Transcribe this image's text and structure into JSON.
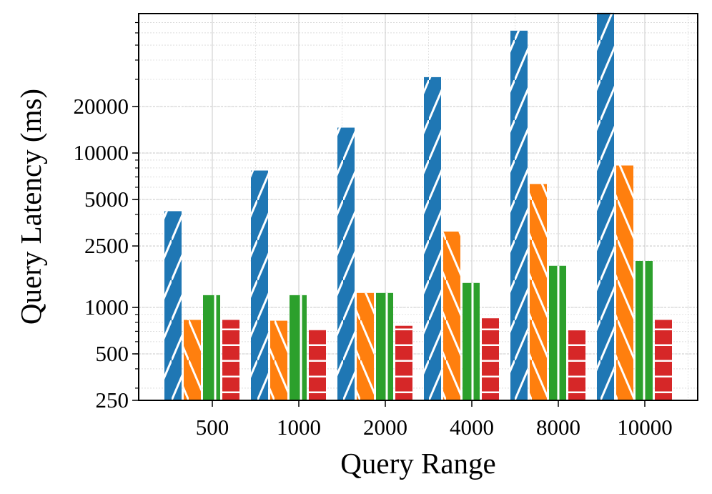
{
  "chart_data": {
    "type": "bar",
    "title": "",
    "xlabel": "Query Range",
    "ylabel": "Query Latency (ms)",
    "y_scale": "log",
    "ylim": [
      250,
      80000
    ],
    "yticks": [
      250,
      500,
      1000,
      2500,
      5000,
      10000,
      20000
    ],
    "ytick_labels": [
      "250",
      "500",
      "1000",
      "2500",
      "5000",
      "10000",
      "20000"
    ],
    "grid": true,
    "legend": "none",
    "categories": [
      "500",
      "1000",
      "2000",
      "4000",
      "8000",
      "10000"
    ],
    "series": [
      {
        "color": "#1f77b4",
        "hatch": "/",
        "values": [
          4200,
          7700,
          14600,
          31000,
          62000,
          81000
        ]
      },
      {
        "color": "#ff7f0e",
        "hatch": "\\",
        "values": [
          830,
          820,
          1240,
          3100,
          6300,
          8300
        ]
      },
      {
        "color": "#2ca02c",
        "hatch": "|",
        "values": [
          1200,
          1200,
          1240,
          1440,
          1860,
          2000
        ]
      },
      {
        "color": "#d62728",
        "hatch": "-",
        "values": [
          830,
          720,
          760,
          850,
          710,
          830
        ]
      }
    ]
  }
}
